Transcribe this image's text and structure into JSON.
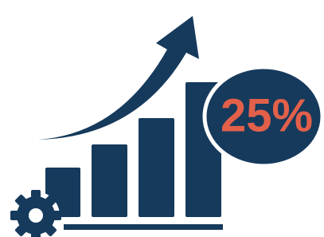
{
  "badge": {
    "label": "25%"
  }
}
